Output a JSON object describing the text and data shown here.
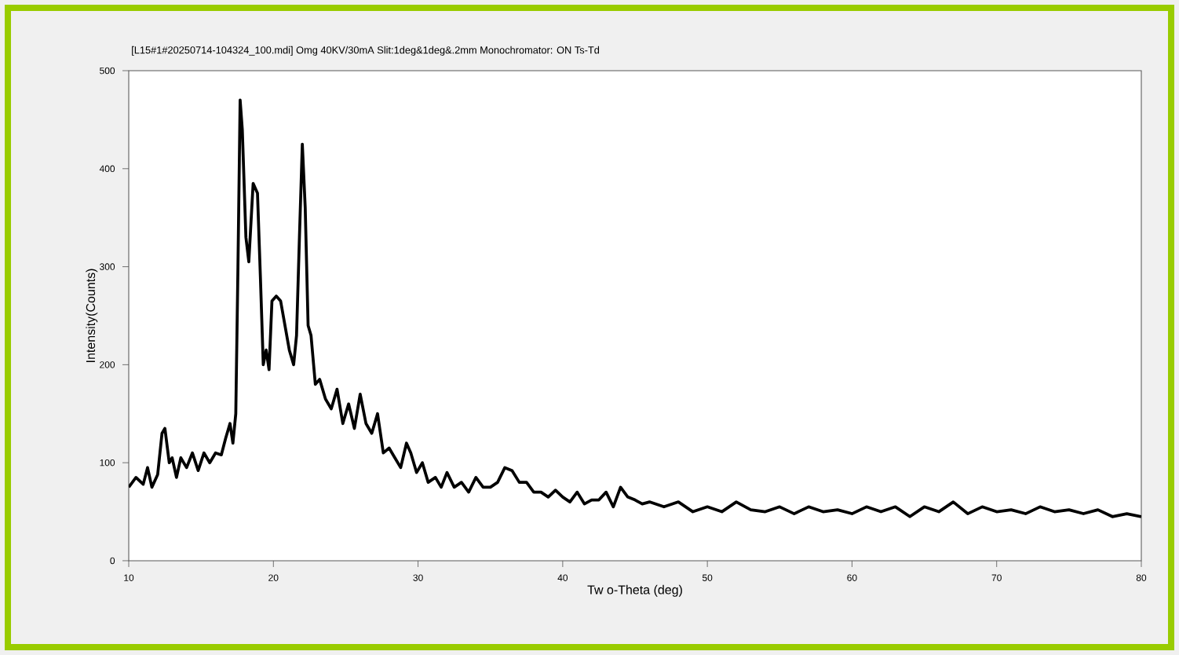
{
  "chart_data": {
    "type": "line",
    "title": "[L15#1#20250714-104324_100.mdi] Omg 40KV/30mA Slit:1deg&1deg&.2mm Monochromator: ON Ts-Td",
    "xlabel": "Tw o-Theta (deg)",
    "ylabel": "Intensity(Counts)",
    "xlim": [
      10,
      80
    ],
    "xticks": [
      10,
      20,
      30,
      40,
      50,
      60,
      70,
      80
    ],
    "ylim": [
      0,
      500
    ],
    "yticks": [
      0,
      100,
      200,
      300,
      400,
      500
    ],
    "color": "#000000",
    "x": [
      10,
      10.5,
      11,
      11.3,
      11.6,
      12,
      12.3,
      12.5,
      12.8,
      13,
      13.3,
      13.6,
      14,
      14.4,
      14.8,
      15.2,
      15.6,
      16,
      16.4,
      16.7,
      17,
      17.2,
      17.4,
      17.55,
      17.7,
      17.85,
      18.1,
      18.3,
      18.6,
      18.9,
      19.1,
      19.3,
      19.5,
      19.7,
      19.9,
      20.2,
      20.5,
      20.8,
      21.1,
      21.4,
      21.6,
      21.8,
      22.0,
      22.2,
      22.4,
      22.6,
      22.9,
      23.2,
      23.6,
      24,
      24.4,
      24.8,
      25.2,
      25.6,
      26,
      26.4,
      26.8,
      27.2,
      27.6,
      28,
      28.4,
      28.8,
      29.2,
      29.5,
      29.9,
      30.3,
      30.7,
      31.2,
      31.6,
      32,
      32.5,
      33,
      33.5,
      34,
      34.5,
      35,
      35.5,
      36,
      36.5,
      37,
      37.5,
      38,
      38.5,
      39,
      39.5,
      40,
      40.5,
      41,
      41.5,
      42,
      42.5,
      43,
      43.5,
      44,
      44.5,
      45,
      45.5,
      46,
      47,
      48,
      49,
      50,
      51,
      52,
      53,
      54,
      55,
      56,
      57,
      58,
      59,
      60,
      61,
      62,
      63,
      64,
      65,
      66,
      67,
      68,
      69,
      70,
      71,
      72,
      73,
      74,
      75,
      76,
      77,
      78,
      79,
      80
    ],
    "values": [
      75,
      85,
      78,
      95,
      75,
      88,
      130,
      135,
      100,
      105,
      85,
      105,
      95,
      110,
      92,
      110,
      100,
      110,
      108,
      125,
      140,
      120,
      150,
      300,
      470,
      440,
      330,
      305,
      385,
      375,
      290,
      200,
      215,
      195,
      265,
      270,
      265,
      240,
      215,
      200,
      230,
      330,
      425,
      360,
      240,
      230,
      180,
      185,
      165,
      155,
      175,
      140,
      160,
      135,
      170,
      140,
      130,
      150,
      110,
      115,
      105,
      95,
      120,
      110,
      90,
      100,
      80,
      85,
      75,
      90,
      75,
      80,
      70,
      85,
      75,
      75,
      80,
      95,
      92,
      80,
      80,
      70,
      70,
      65,
      72,
      65,
      60,
      70,
      58,
      62,
      62,
      70,
      55,
      75,
      65,
      62,
      58,
      60,
      55,
      60,
      50,
      55,
      50,
      60,
      52,
      50,
      55,
      48,
      55,
      50,
      52,
      48,
      55,
      50,
      55,
      45,
      55,
      50,
      60,
      48,
      55,
      50,
      52,
      48,
      55,
      50,
      52,
      48,
      52,
      45,
      48,
      45
    ]
  }
}
